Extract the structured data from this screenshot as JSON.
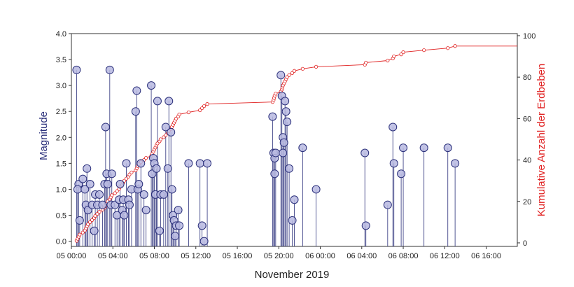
{
  "chart_data": {
    "type": "stem-with-cumulative-line",
    "title": "",
    "xlabel": "November 2019",
    "ylabel_left": "Magnitude",
    "ylabel_right": "Kumulative Anzahl der Erdbeben",
    "xlim_hours": [
      0,
      43
    ],
    "ylim_left": [
      -0.1,
      4.0
    ],
    "ylim_right": [
      -1.7,
      101
    ],
    "x_tick_hours": [
      0,
      4,
      8,
      12,
      16,
      20,
      24,
      28,
      32,
      36,
      40
    ],
    "x_tick_labels": [
      "05 00:00",
      "05 04:00",
      "05 08:00",
      "05 12:00",
      "05 16:00",
      "05 20:00",
      "06 00:00",
      "06 04:00",
      "06 08:00",
      "06 12:00",
      "06 16:00"
    ],
    "y_left_ticks": [
      "0.0",
      "0.5",
      "1.0",
      "1.5",
      "2.0",
      "2.5",
      "3.0",
      "3.5",
      "4.0"
    ],
    "y_right_ticks": [
      "0",
      "20",
      "40",
      "60",
      "80",
      "100"
    ],
    "colors": {
      "magnitude": "#2a2f7a",
      "marker_fill": "#b7b8e0",
      "cumulative": "#e02020"
    },
    "magnitude_series": {
      "name": "Magnitude",
      "points": [
        [
          0.5,
          3.3
        ],
        [
          0.7,
          1.1
        ],
        [
          0.6,
          1.0
        ],
        [
          0.8,
          0.4
        ],
        [
          1.1,
          1.2
        ],
        [
          1.3,
          1.0
        ],
        [
          1.4,
          0.7
        ],
        [
          1.5,
          1.4
        ],
        [
          1.6,
          0.6
        ],
        [
          1.8,
          1.1
        ],
        [
          2.0,
          0.7
        ],
        [
          2.2,
          0.2
        ],
        [
          2.3,
          0.9
        ],
        [
          2.5,
          0.7
        ],
        [
          2.7,
          0.9
        ],
        [
          3.0,
          0.7
        ],
        [
          3.3,
          2.2
        ],
        [
          3.2,
          1.1
        ],
        [
          3.4,
          1.3
        ],
        [
          3.5,
          1.1
        ],
        [
          3.7,
          3.3
        ],
        [
          3.8,
          0.7
        ],
        [
          3.9,
          1.3
        ],
        [
          4.2,
          0.7
        ],
        [
          4.4,
          0.5
        ],
        [
          4.6,
          0.8
        ],
        [
          4.7,
          1.1
        ],
        [
          4.9,
          0.6
        ],
        [
          5.0,
          0.8
        ],
        [
          5.1,
          0.5
        ],
        [
          5.3,
          1.5
        ],
        [
          5.5,
          0.8
        ],
        [
          5.6,
          0.7
        ],
        [
          5.8,
          1.0
        ],
        [
          6.2,
          2.5
        ],
        [
          6.3,
          2.9
        ],
        [
          6.4,
          1.0
        ],
        [
          6.5,
          1.1
        ],
        [
          6.7,
          1.5
        ],
        [
          7.0,
          0.9
        ],
        [
          7.2,
          0.6
        ],
        [
          7.7,
          3.0
        ],
        [
          7.8,
          1.3
        ],
        [
          7.9,
          1.6
        ],
        [
          8.0,
          1.5
        ],
        [
          8.1,
          0.9
        ],
        [
          8.2,
          1.4
        ],
        [
          8.3,
          2.7
        ],
        [
          8.5,
          0.2
        ],
        [
          8.6,
          0.9
        ],
        [
          8.9,
          0.9
        ],
        [
          9.1,
          2.2
        ],
        [
          9.3,
          1.4
        ],
        [
          9.4,
          2.7
        ],
        [
          9.6,
          2.1
        ],
        [
          9.7,
          1.0
        ],
        [
          9.8,
          0.5
        ],
        [
          9.9,
          0.4
        ],
        [
          10.0,
          0.1
        ],
        [
          10.1,
          0.3
        ],
        [
          10.3,
          0.6
        ],
        [
          10.4,
          0.3
        ],
        [
          11.3,
          1.5
        ],
        [
          12.4,
          1.5
        ],
        [
          12.6,
          0.3
        ],
        [
          12.8,
          0.0
        ],
        [
          13.1,
          1.5
        ],
        [
          19.4,
          2.4
        ],
        [
          19.5,
          1.7
        ],
        [
          19.6,
          1.6
        ],
        [
          19.6,
          1.3
        ],
        [
          19.7,
          1.7
        ],
        [
          20.2,
          3.2
        ],
        [
          20.3,
          2.8
        ],
        [
          20.4,
          1.7
        ],
        [
          20.4,
          2.0
        ],
        [
          20.5,
          1.9
        ],
        [
          20.6,
          2.7
        ],
        [
          20.7,
          2.5
        ],
        [
          20.8,
          2.3
        ],
        [
          21.0,
          1.4
        ],
        [
          21.3,
          0.4
        ],
        [
          21.5,
          0.8
        ],
        [
          22.3,
          1.8
        ],
        [
          23.6,
          1.0
        ],
        [
          28.3,
          1.7
        ],
        [
          28.4,
          0.3
        ],
        [
          30.5,
          0.7
        ],
        [
          31.0,
          2.2
        ],
        [
          31.1,
          1.5
        ],
        [
          31.8,
          1.3
        ],
        [
          32.0,
          1.8
        ],
        [
          34.0,
          1.8
        ],
        [
          36.3,
          1.8
        ],
        [
          37.0,
          1.5
        ]
      ]
    },
    "cumulative_series": {
      "name": "Kumulative Anzahl der Erdbeben",
      "points": [
        [
          0.5,
          1
        ],
        [
          0.6,
          2
        ],
        [
          0.7,
          3
        ],
        [
          0.8,
          4
        ],
        [
          1.1,
          5
        ],
        [
          1.3,
          6
        ],
        [
          1.4,
          7
        ],
        [
          1.5,
          8
        ],
        [
          1.6,
          9
        ],
        [
          1.8,
          10
        ],
        [
          2.0,
          11
        ],
        [
          2.2,
          12
        ],
        [
          2.3,
          13
        ],
        [
          2.5,
          14
        ],
        [
          2.7,
          15
        ],
        [
          3.0,
          16
        ],
        [
          3.2,
          17
        ],
        [
          3.3,
          18
        ],
        [
          3.4,
          19
        ],
        [
          3.5,
          20
        ],
        [
          3.7,
          21
        ],
        [
          3.8,
          22
        ],
        [
          3.9,
          23
        ],
        [
          4.2,
          24
        ],
        [
          4.4,
          25
        ],
        [
          4.6,
          26
        ],
        [
          4.7,
          27
        ],
        [
          4.9,
          28
        ],
        [
          5.0,
          29
        ],
        [
          5.1,
          30
        ],
        [
          5.3,
          31
        ],
        [
          5.5,
          32
        ],
        [
          5.6,
          33
        ],
        [
          5.8,
          34
        ],
        [
          6.2,
          35
        ],
        [
          6.3,
          36
        ],
        [
          6.4,
          37
        ],
        [
          6.5,
          38
        ],
        [
          6.7,
          39
        ],
        [
          7.0,
          40
        ],
        [
          7.2,
          41
        ],
        [
          7.7,
          42
        ],
        [
          7.8,
          43
        ],
        [
          7.9,
          44
        ],
        [
          8.0,
          45
        ],
        [
          8.1,
          46
        ],
        [
          8.2,
          47
        ],
        [
          8.3,
          48
        ],
        [
          8.5,
          49
        ],
        [
          8.6,
          50
        ],
        [
          8.9,
          51
        ],
        [
          9.1,
          52
        ],
        [
          9.3,
          53
        ],
        [
          9.4,
          54
        ],
        [
          9.6,
          55
        ],
        [
          9.7,
          56
        ],
        [
          9.8,
          57
        ],
        [
          9.9,
          58
        ],
        [
          10.0,
          59
        ],
        [
          10.1,
          60
        ],
        [
          10.3,
          61
        ],
        [
          10.4,
          62
        ],
        [
          11.3,
          63
        ],
        [
          12.4,
          64
        ],
        [
          12.6,
          65
        ],
        [
          12.8,
          66
        ],
        [
          13.1,
          67
        ],
        [
          19.4,
          68
        ],
        [
          19.5,
          69
        ],
        [
          19.55,
          70
        ],
        [
          19.6,
          71
        ],
        [
          19.7,
          72
        ],
        [
          20.2,
          73
        ],
        [
          20.3,
          74
        ],
        [
          20.35,
          75
        ],
        [
          20.4,
          76
        ],
        [
          20.5,
          77
        ],
        [
          20.6,
          78
        ],
        [
          20.7,
          79
        ],
        [
          20.8,
          80
        ],
        [
          21.0,
          81
        ],
        [
          21.3,
          82
        ],
        [
          21.5,
          83
        ],
        [
          22.3,
          84
        ],
        [
          23.6,
          85
        ],
        [
          28.3,
          86
        ],
        [
          28.4,
          87
        ],
        [
          30.5,
          88
        ],
        [
          31.0,
          89
        ],
        [
          31.1,
          90
        ],
        [
          31.8,
          91
        ],
        [
          32.0,
          92
        ],
        [
          34.0,
          93
        ],
        [
          36.3,
          94
        ],
        [
          37.0,
          95
        ],
        [
          43.0,
          95
        ]
      ]
    }
  }
}
